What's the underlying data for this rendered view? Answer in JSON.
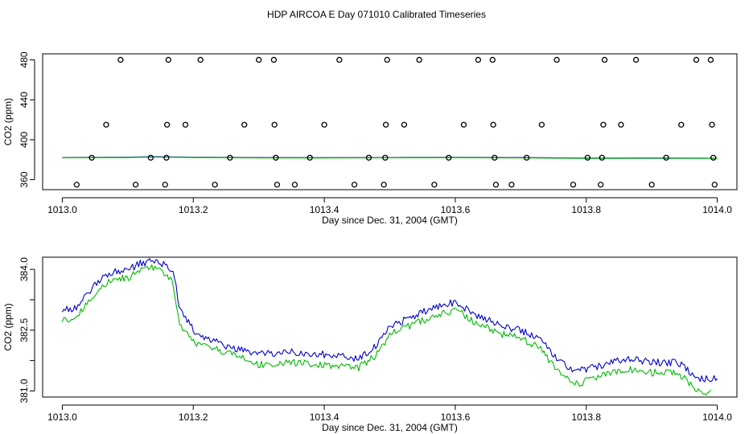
{
  "page": {
    "title": "HDP AIRCOA E  Day 071010  Calibrated Timeseries"
  },
  "colors": {
    "axis": "#000000",
    "blue": "#0000cc",
    "green": "#00bb00"
  },
  "chart_data": [
    {
      "type": "scatter",
      "xlabel": "Day since Dec. 31, 2004 (GMT)",
      "ylabel": "CO2 (ppm)",
      "xlim": [
        1012.97,
        1014.03
      ],
      "ylim": [
        350,
        486
      ],
      "x_ticks": [
        {
          "value": 1013.0,
          "label": "1013.0"
        },
        {
          "value": 1013.2,
          "label": "1013.2"
        },
        {
          "value": 1013.4,
          "label": "1013.4"
        },
        {
          "value": 1013.6,
          "label": "1013.6"
        },
        {
          "value": 1013.8,
          "label": "1013.8"
        },
        {
          "value": 1014.0,
          "label": "1014.0"
        }
      ],
      "y_ticks": [
        {
          "value": 360,
          "label": "360"
        },
        {
          "value": 400,
          "label": "400"
        },
        {
          "value": 440,
          "label": "440"
        },
        {
          "value": 480,
          "label": "480"
        }
      ],
      "points": [
        {
          "x": 1013.022,
          "y": 355
        },
        {
          "x": 1013.045,
          "y": 382
        },
        {
          "x": 1013.067,
          "y": 415
        },
        {
          "x": 1013.089,
          "y": 480
        },
        {
          "x": 1013.112,
          "y": 355
        },
        {
          "x": 1013.135,
          "y": 382
        },
        {
          "x": 1013.157,
          "y": 355
        },
        {
          "x": 1013.159,
          "y": 382
        },
        {
          "x": 1013.16,
          "y": 415
        },
        {
          "x": 1013.162,
          "y": 480
        },
        {
          "x": 1013.188,
          "y": 415
        },
        {
          "x": 1013.211,
          "y": 480
        },
        {
          "x": 1013.233,
          "y": 355
        },
        {
          "x": 1013.256,
          "y": 382
        },
        {
          "x": 1013.278,
          "y": 415
        },
        {
          "x": 1013.3,
          "y": 480
        },
        {
          "x": 1013.323,
          "y": 480
        },
        {
          "x": 1013.324,
          "y": 415
        },
        {
          "x": 1013.326,
          "y": 382
        },
        {
          "x": 1013.328,
          "y": 355
        },
        {
          "x": 1013.355,
          "y": 355
        },
        {
          "x": 1013.378,
          "y": 382
        },
        {
          "x": 1013.4,
          "y": 415
        },
        {
          "x": 1013.423,
          "y": 480
        },
        {
          "x": 1013.446,
          "y": 355
        },
        {
          "x": 1013.468,
          "y": 382
        },
        {
          "x": 1013.491,
          "y": 355
        },
        {
          "x": 1013.493,
          "y": 382
        },
        {
          "x": 1013.494,
          "y": 415
        },
        {
          "x": 1013.496,
          "y": 480
        },
        {
          "x": 1013.522,
          "y": 415
        },
        {
          "x": 1013.545,
          "y": 480
        },
        {
          "x": 1013.568,
          "y": 355
        },
        {
          "x": 1013.59,
          "y": 382
        },
        {
          "x": 1013.613,
          "y": 415
        },
        {
          "x": 1013.635,
          "y": 480
        },
        {
          "x": 1013.657,
          "y": 480
        },
        {
          "x": 1013.658,
          "y": 415
        },
        {
          "x": 1013.66,
          "y": 382
        },
        {
          "x": 1013.662,
          "y": 355
        },
        {
          "x": 1013.686,
          "y": 355
        },
        {
          "x": 1013.709,
          "y": 382
        },
        {
          "x": 1013.732,
          "y": 415
        },
        {
          "x": 1013.755,
          "y": 480
        },
        {
          "x": 1013.78,
          "y": 355
        },
        {
          "x": 1013.802,
          "y": 382
        },
        {
          "x": 1013.822,
          "y": 355
        },
        {
          "x": 1013.824,
          "y": 382
        },
        {
          "x": 1013.826,
          "y": 415
        },
        {
          "x": 1013.828,
          "y": 480
        },
        {
          "x": 1013.853,
          "y": 415
        },
        {
          "x": 1013.876,
          "y": 480
        },
        {
          "x": 1013.9,
          "y": 355
        },
        {
          "x": 1013.922,
          "y": 382
        },
        {
          "x": 1013.945,
          "y": 415
        },
        {
          "x": 1013.968,
          "y": 480
        },
        {
          "x": 1013.99,
          "y": 480
        },
        {
          "x": 1013.992,
          "y": 415
        },
        {
          "x": 1013.994,
          "y": 382
        },
        {
          "x": 1013.996,
          "y": 355
        }
      ],
      "series": [
        {
          "color": "blue",
          "x": [
            1013.0,
            1013.1,
            1013.14,
            1013.2,
            1013.3,
            1013.4,
            1013.5,
            1013.6,
            1013.7,
            1013.8,
            1013.9,
            1014.0
          ],
          "y": [
            382.3,
            382.5,
            382.9,
            382.6,
            382.2,
            382.0,
            382.3,
            382.4,
            382.1,
            381.6,
            381.7,
            381.5
          ]
        },
        {
          "color": "green",
          "x": [
            1013.0,
            1013.1,
            1013.14,
            1013.2,
            1013.3,
            1013.4,
            1013.5,
            1013.6,
            1013.7,
            1013.8,
            1013.9,
            1014.0
          ],
          "y": [
            382.0,
            382.2,
            382.6,
            382.3,
            381.9,
            381.7,
            382.0,
            382.1,
            381.8,
            381.3,
            381.4,
            381.2
          ]
        }
      ]
    },
    {
      "type": "line",
      "xlabel": "Day since Dec. 31, 2004 (GMT)",
      "ylabel": "CO2 (ppm)",
      "xlim": [
        1012.97,
        1014.03
      ],
      "ylim": [
        380.85,
        384.3
      ],
      "x_ticks": [
        {
          "value": 1013.0,
          "label": "1013.0"
        },
        {
          "value": 1013.2,
          "label": "1013.2"
        },
        {
          "value": 1013.4,
          "label": "1013.4"
        },
        {
          "value": 1013.6,
          "label": "1013.6"
        },
        {
          "value": 1013.8,
          "label": "1013.8"
        },
        {
          "value": 1014.0,
          "label": "1014.0"
        }
      ],
      "y_ticks": [
        {
          "value": 381.0,
          "label": "381.0"
        },
        {
          "value": 381.75,
          "label": ""
        },
        {
          "value": 382.5,
          "label": "382.5"
        },
        {
          "value": 383.25,
          "label": ""
        },
        {
          "value": 384.0,
          "label": "384.0"
        }
      ],
      "series": [
        {
          "color": "blue",
          "x": [
            1013.0,
            1013.02,
            1013.04,
            1013.06,
            1013.08,
            1013.1,
            1013.12,
            1013.14,
            1013.16,
            1013.17,
            1013.18,
            1013.2,
            1013.22,
            1013.25,
            1013.3,
            1013.35,
            1013.4,
            1013.45,
            1013.48,
            1013.5,
            1013.53,
            1013.56,
            1013.6,
            1013.63,
            1013.67,
            1013.7,
            1013.73,
            1013.75,
            1013.78,
            1013.82,
            1013.86,
            1013.9,
            1013.94,
            1013.97,
            1014.0
          ],
          "y": [
            383.0,
            383.05,
            383.4,
            383.8,
            383.95,
            384.0,
            384.15,
            384.2,
            384.1,
            383.9,
            383.0,
            382.5,
            382.3,
            382.1,
            381.9,
            381.95,
            381.9,
            381.8,
            382.1,
            382.6,
            382.8,
            383.0,
            383.2,
            382.9,
            382.6,
            382.5,
            382.3,
            381.9,
            381.5,
            381.6,
            381.8,
            381.7,
            381.7,
            381.3,
            381.3
          ]
        },
        {
          "color": "green",
          "x": [
            1013.0,
            1013.02,
            1013.04,
            1013.06,
            1013.08,
            1013.1,
            1013.12,
            1013.14,
            1013.16,
            1013.17,
            1013.18,
            1013.2,
            1013.22,
            1013.25,
            1013.3,
            1013.35,
            1013.4,
            1013.45,
            1013.48,
            1013.5,
            1013.53,
            1013.56,
            1013.6,
            1013.63,
            1013.67,
            1013.7,
            1013.73,
            1013.75,
            1013.78,
            1013.82,
            1013.86,
            1013.9,
            1013.94,
            1013.97,
            1013.99
          ],
          "y": [
            382.75,
            382.8,
            383.2,
            383.6,
            383.75,
            383.8,
            384.0,
            384.05,
            383.9,
            383.6,
            382.6,
            382.2,
            382.1,
            381.95,
            381.65,
            381.7,
            381.65,
            381.55,
            381.9,
            382.4,
            382.6,
            382.8,
            383.0,
            382.7,
            382.4,
            382.3,
            382.05,
            381.6,
            381.15,
            381.35,
            381.55,
            381.45,
            381.45,
            381.0,
            380.95
          ]
        }
      ]
    }
  ]
}
